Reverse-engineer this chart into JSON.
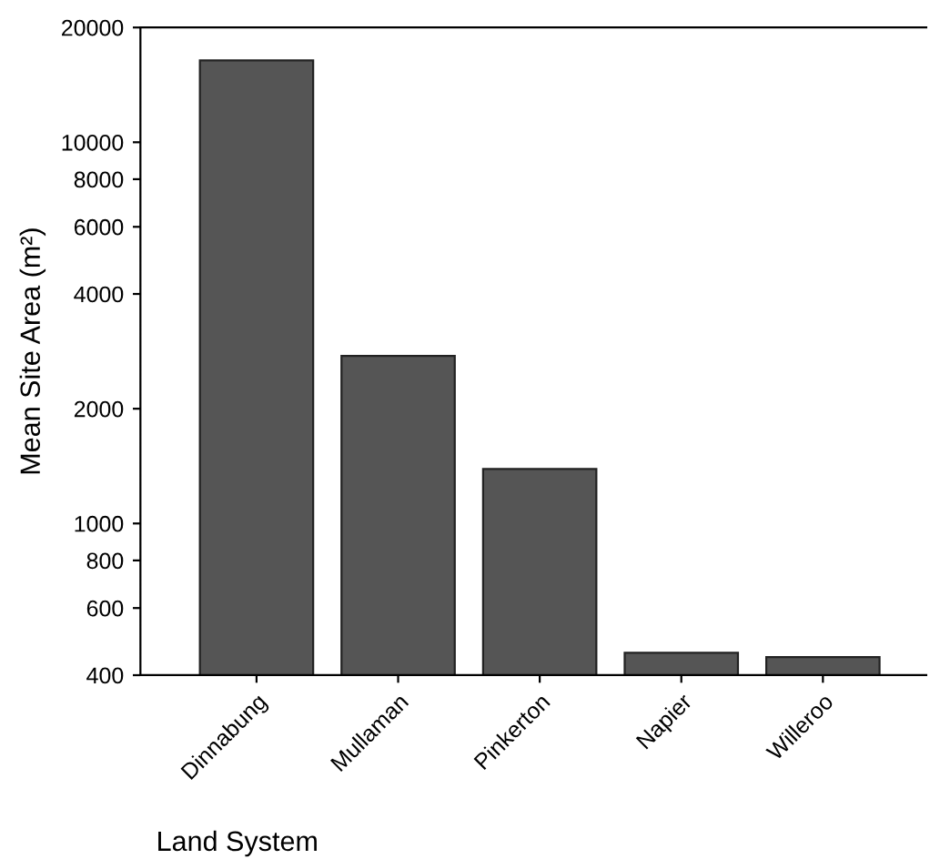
{
  "chart_data": {
    "type": "bar",
    "xlabel": "Land System",
    "ylabel": "Mean Site Area (m²)",
    "categories": [
      "Dinnabung",
      "Mullaman",
      "Pinkerton",
      "Napier",
      "Willeroo"
    ],
    "values": [
      16400,
      2750,
      1390,
      458,
      446
    ],
    "color": "#555555",
    "log": "y",
    "ylim": [
      400,
      20000
    ],
    "yticks": [
      400,
      600,
      800,
      1000,
      2000,
      4000,
      6000,
      8000,
      10000,
      20000
    ],
    "grid": false,
    "legend": false
  }
}
